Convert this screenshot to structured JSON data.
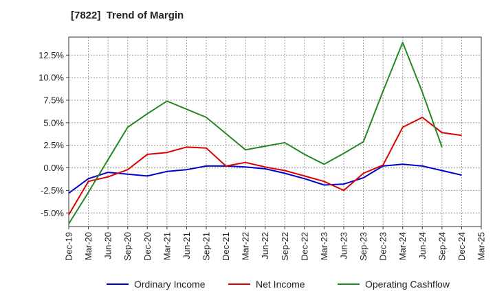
{
  "chart_data": {
    "type": "line",
    "title": "[7822]  Trend of Margin",
    "xlabel": "",
    "ylabel": "",
    "categories": [
      "Dec-19",
      "Mar-20",
      "Jun-20",
      "Sep-20",
      "Dec-20",
      "Mar-21",
      "Jun-21",
      "Sep-21",
      "Dec-21",
      "Mar-22",
      "Jun-22",
      "Sep-22",
      "Dec-22",
      "Mar-23",
      "Jun-23",
      "Sep-23",
      "Dec-23",
      "Mar-24",
      "Jun-24",
      "Sep-24",
      "Dec-24",
      "Mar-25"
    ],
    "x_tick_labels": [
      "Dec-19",
      "Mar-20",
      "Jun-20",
      "Sep-20",
      "Dec-20",
      "Mar-21",
      "Jun-21",
      "Sep-21",
      "Dec-21",
      "Mar-22",
      "Jun-22",
      "Sep-22",
      "Dec-22",
      "Mar-23",
      "Jun-23",
      "Sep-23",
      "Dec-23",
      "Mar-24",
      "Jun-24",
      "Sep-24",
      "Dec-24",
      "Mar-25"
    ],
    "ylim": [
      -6.5,
      14.5
    ],
    "y_ticks": [
      -5.0,
      -2.5,
      0.0,
      2.5,
      5.0,
      7.5,
      10.0,
      12.5
    ],
    "y_tick_labels": [
      "-5.0%",
      "-2.5%",
      "0.0%",
      "2.5%",
      "5.0%",
      "7.5%",
      "10.0%",
      "12.5%"
    ],
    "grid": true,
    "legend_position": "bottom",
    "series": [
      {
        "name": "Ordinary Income",
        "color": "#0000cc",
        "values": [
          -2.8,
          -1.2,
          -0.5,
          -0.7,
          -0.9,
          -0.4,
          -0.2,
          0.2,
          0.2,
          0.1,
          -0.1,
          -0.6,
          -1.2,
          -1.9,
          -1.8,
          -1.1,
          0.2,
          0.4,
          0.2,
          -0.3,
          -0.8,
          null
        ]
      },
      {
        "name": "Net Income",
        "color": "#dd0000",
        "values": [
          -5.2,
          -1.5,
          -1.0,
          -0.2,
          1.5,
          1.7,
          2.3,
          2.2,
          0.2,
          0.6,
          0.1,
          -0.3,
          -0.9,
          -1.5,
          -2.5,
          -0.6,
          0.3,
          4.5,
          5.6,
          3.9,
          3.6,
          null
        ]
      },
      {
        "name": "Operating Cashflow",
        "color": "#228822",
        "values": [
          -6.2,
          -2.7,
          0.9,
          4.5,
          6.0,
          7.4,
          6.5,
          5.6,
          3.8,
          2.0,
          2.4,
          2.8,
          1.5,
          0.4,
          1.6,
          2.9,
          8.5,
          13.9,
          8.4,
          2.3,
          null,
          null
        ]
      }
    ]
  }
}
